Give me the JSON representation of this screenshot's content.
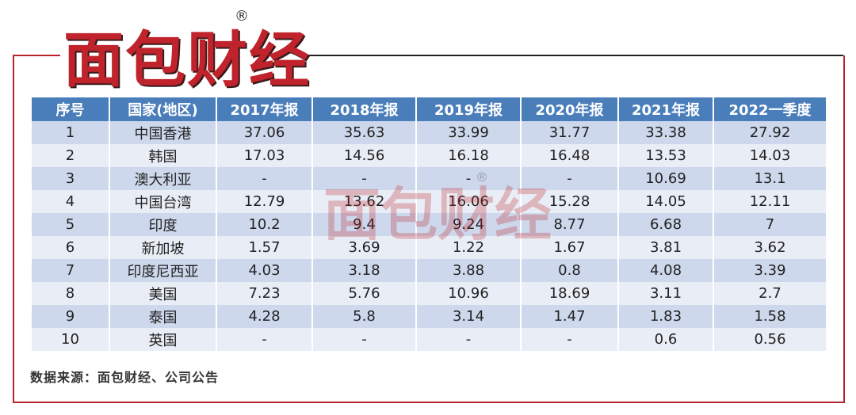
{
  "header": {
    "logo": "面包财经",
    "registered": "®"
  },
  "table": {
    "columns": [
      "序号",
      "国家(地区)",
      "2017年报",
      "2018年报",
      "2019年报",
      "2020年报",
      "2021年报",
      "2022一季度"
    ],
    "rows": [
      [
        "1",
        "中国香港",
        "37.06",
        "35.63",
        "33.99",
        "31.77",
        "33.38",
        "27.92"
      ],
      [
        "2",
        "韩国",
        "17.03",
        "14.56",
        "16.18",
        "16.48",
        "13.53",
        "14.03"
      ],
      [
        "3",
        "澳大利亚",
        "-",
        "-",
        "-",
        "-",
        "10.69",
        "13.1"
      ],
      [
        "4",
        "中国台湾",
        "12.79",
        "13.62",
        "16.06",
        "15.28",
        "14.05",
        "12.11"
      ],
      [
        "5",
        "印度",
        "10.2",
        "9.4",
        "9.24",
        "8.77",
        "6.68",
        "7"
      ],
      [
        "6",
        "新加坡",
        "1.57",
        "3.69",
        "1.22",
        "1.67",
        "3.81",
        "3.62"
      ],
      [
        "7",
        "印度尼西亚",
        "4.03",
        "3.18",
        "3.88",
        "0.8",
        "4.08",
        "3.39"
      ],
      [
        "8",
        "美国",
        "7.23",
        "5.76",
        "10.96",
        "18.69",
        "3.11",
        "2.7"
      ],
      [
        "9",
        "泰国",
        "4.28",
        "5.8",
        "3.14",
        "1.47",
        "1.83",
        "1.58"
      ],
      [
        "10",
        "英国",
        "-",
        "-",
        "-",
        "-",
        "0.6",
        "0.56"
      ]
    ]
  },
  "watermark": {
    "text": "面包财经",
    "registered": "®"
  },
  "source": "数据来源：面包财经、公司公告"
}
